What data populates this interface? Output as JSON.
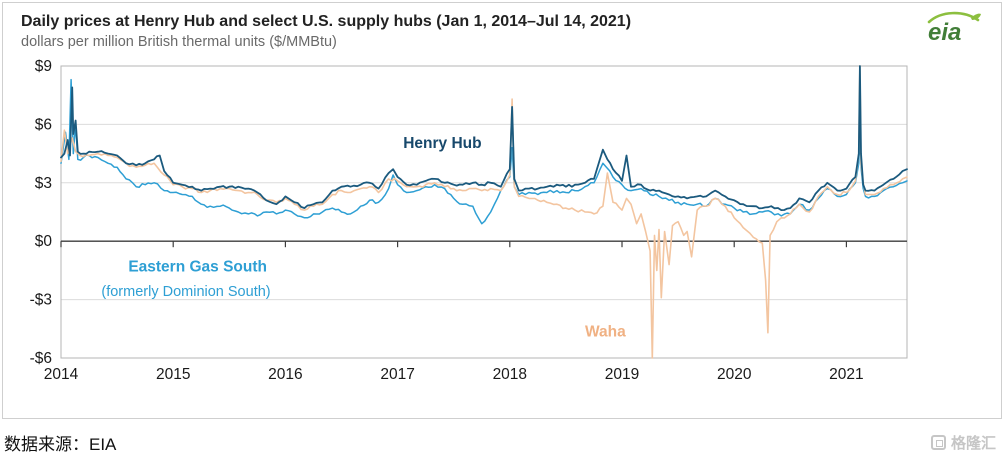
{
  "header": {
    "title": "Daily prices at Henry Hub and select U.S. supply hubs (Jan 1, 2014–Jul 14, 2021)",
    "subtitle": "dollars per million British thermal units ($/MMBtu)",
    "logo_text": "eia"
  },
  "source": {
    "label": "数据来源：EIA"
  },
  "watermark": {
    "text": "格隆汇"
  },
  "colors": {
    "henry_hub": "#1b5a7e",
    "eastern_gas_south": "#2e9fd4",
    "waha": "#f3c5a0",
    "eia_green": "#417e38",
    "eia_swoosh": "#8cbf3f"
  },
  "chart_data": {
    "type": "line",
    "title": "Daily prices at Henry Hub and select U.S. supply hubs (Jan 1, 2014–Jul 14, 2021)",
    "ylabel": "dollars per million British thermal units ($/MMBtu)",
    "grid": true,
    "legend_position": "in-plot-annotations",
    "x_range": [
      2014,
      2021.54
    ],
    "ylim": [
      -6,
      9
    ],
    "y_ticks": [
      9,
      6,
      3,
      0,
      -3,
      -6
    ],
    "y_tick_labels": [
      "$9",
      "$6",
      "$3",
      "$0",
      "-$3",
      "-$6"
    ],
    "x_ticks": [
      2014,
      2015,
      2016,
      2017,
      2018,
      2019,
      2020,
      2021
    ],
    "series": [
      {
        "name": "Eastern Gas South (formerly Dominion South)",
        "color": "#2e9fd4",
        "width": 1.5,
        "noise": 0.09,
        "x": [
          2014.0,
          2014.04,
          2014.07,
          2014.09,
          2014.11,
          2014.13,
          2014.15,
          2014.2,
          2014.25,
          2014.33,
          2014.42,
          2014.5,
          2014.58,
          2014.67,
          2014.75,
          2014.83,
          2014.92,
          2015.0,
          2015.08,
          2015.17,
          2015.25,
          2015.33,
          2015.42,
          2015.5,
          2015.58,
          2015.67,
          2015.75,
          2015.83,
          2015.92,
          2016.0,
          2016.08,
          2016.17,
          2016.25,
          2016.33,
          2016.42,
          2016.5,
          2016.58,
          2016.67,
          2016.75,
          2016.83,
          2016.92,
          2016.96,
          2017.0,
          2017.08,
          2017.17,
          2017.25,
          2017.33,
          2017.42,
          2017.5,
          2017.58,
          2017.67,
          2017.75,
          2017.83,
          2017.92,
          2018.0,
          2018.02,
          2018.04,
          2018.08,
          2018.17,
          2018.25,
          2018.33,
          2018.42,
          2018.5,
          2018.58,
          2018.67,
          2018.75,
          2018.83,
          2018.92,
          2019.0,
          2019.08,
          2019.17,
          2019.25,
          2019.33,
          2019.42,
          2019.5,
          2019.58,
          2019.67,
          2019.75,
          2019.83,
          2019.92,
          2020.0,
          2020.08,
          2020.17,
          2020.25,
          2020.33,
          2020.42,
          2020.5,
          2020.58,
          2020.67,
          2020.75,
          2020.83,
          2020.92,
          2021.0,
          2021.08,
          2021.11,
          2021.12,
          2021.13,
          2021.15,
          2021.17,
          2021.25,
          2021.33,
          2021.42,
          2021.5,
          2021.54
        ],
        "y": [
          4.0,
          5.6,
          4.2,
          8.3,
          4.5,
          6.0,
          4.2,
          4.3,
          4.4,
          4.3,
          4.0,
          3.8,
          3.2,
          2.8,
          2.9,
          3.0,
          2.6,
          2.5,
          2.4,
          2.3,
          1.9,
          1.8,
          1.8,
          1.7,
          1.5,
          1.4,
          1.3,
          1.5,
          1.4,
          1.6,
          1.4,
          1.2,
          1.4,
          1.5,
          1.7,
          1.5,
          1.4,
          1.8,
          2.1,
          2.0,
          2.7,
          3.4,
          2.9,
          2.5,
          2.6,
          2.8,
          2.9,
          2.7,
          2.2,
          1.9,
          1.8,
          0.9,
          1.5,
          2.6,
          3.3,
          4.8,
          2.8,
          2.4,
          2.5,
          2.4,
          2.5,
          2.6,
          2.5,
          2.6,
          2.8,
          3.0,
          4.0,
          3.3,
          2.9,
          2.6,
          2.7,
          2.4,
          2.3,
          2.1,
          2.0,
          1.9,
          1.9,
          1.8,
          2.2,
          1.9,
          1.7,
          1.5,
          1.4,
          1.5,
          1.5,
          1.3,
          1.4,
          1.9,
          1.6,
          2.2,
          2.7,
          2.3,
          2.4,
          3.0,
          4.0,
          5.8,
          3.8,
          2.7,
          2.3,
          2.3,
          2.6,
          2.8,
          3.0,
          3.1
        ]
      },
      {
        "name": "Waha",
        "color": "#f3c5a0",
        "width": 1.6,
        "noise": 0.09,
        "x": [
          2014.0,
          2014.03,
          2014.06,
          2014.1,
          2014.13,
          2014.17,
          2014.25,
          2014.33,
          2014.42,
          2014.5,
          2014.58,
          2014.67,
          2014.75,
          2014.83,
          2014.92,
          2015.0,
          2015.08,
          2015.17,
          2015.25,
          2015.33,
          2015.42,
          2015.5,
          2015.58,
          2015.67,
          2015.75,
          2015.83,
          2015.92,
          2016.0,
          2016.08,
          2016.17,
          2016.25,
          2016.33,
          2016.42,
          2016.5,
          2016.58,
          2016.67,
          2016.75,
          2016.83,
          2016.92,
          2017.0,
          2017.08,
          2017.17,
          2017.25,
          2017.33,
          2017.42,
          2017.5,
          2017.58,
          2017.67,
          2017.75,
          2017.83,
          2017.92,
          2018.0,
          2018.02,
          2018.04,
          2018.08,
          2018.17,
          2018.25,
          2018.33,
          2018.42,
          2018.5,
          2018.58,
          2018.67,
          2018.75,
          2018.83,
          2018.87,
          2018.92,
          2019.0,
          2019.04,
          2019.08,
          2019.13,
          2019.17,
          2019.21,
          2019.25,
          2019.27,
          2019.29,
          2019.31,
          2019.33,
          2019.35,
          2019.38,
          2019.42,
          2019.45,
          2019.5,
          2019.55,
          2019.58,
          2019.62,
          2019.67,
          2019.75,
          2019.83,
          2019.92,
          2020.0,
          2020.08,
          2020.17,
          2020.25,
          2020.28,
          2020.3,
          2020.32,
          2020.38,
          2020.42,
          2020.5,
          2020.58,
          2020.67,
          2020.75,
          2020.83,
          2020.92,
          2021.0,
          2021.08,
          2021.11,
          2021.12,
          2021.13,
          2021.15,
          2021.17,
          2021.25,
          2021.33,
          2021.42,
          2021.5,
          2021.54
        ],
        "y": [
          4.1,
          5.7,
          4.5,
          5.3,
          4.6,
          4.4,
          4.4,
          4.5,
          4.4,
          4.3,
          4.0,
          3.8,
          3.9,
          4.0,
          3.4,
          2.9,
          2.8,
          2.7,
          2.5,
          2.6,
          2.7,
          2.7,
          2.6,
          2.5,
          2.4,
          2.1,
          2.0,
          2.2,
          1.9,
          1.6,
          1.8,
          1.9,
          2.4,
          2.6,
          2.5,
          2.7,
          2.8,
          2.5,
          3.2,
          3.1,
          2.8,
          2.8,
          2.9,
          3.0,
          2.8,
          2.7,
          2.6,
          2.7,
          2.6,
          2.7,
          2.6,
          3.4,
          7.3,
          2.8,
          2.3,
          2.2,
          2.1,
          2.0,
          1.9,
          1.7,
          1.6,
          1.5,
          1.4,
          1.8,
          3.5,
          2.0,
          1.6,
          2.2,
          1.9,
          0.9,
          1.4,
          0.5,
          -0.5,
          -6.0,
          0.3,
          -1.5,
          0.6,
          -2.9,
          0.5,
          -1.2,
          0.8,
          1.0,
          0.3,
          0.5,
          -0.8,
          1.6,
          1.8,
          2.2,
          1.8,
          1.2,
          0.7,
          0.2,
          -0.1,
          -2.0,
          -4.7,
          0.3,
          1.0,
          1.2,
          1.4,
          1.9,
          1.5,
          2.3,
          2.8,
          2.4,
          2.5,
          3.1,
          4.5,
          9.0,
          4.0,
          3.0,
          2.4,
          2.4,
          2.7,
          2.9,
          3.2,
          3.3
        ]
      },
      {
        "name": "Henry Hub",
        "color": "#1b5a7e",
        "width": 1.8,
        "noise": 0.07,
        "x": [
          2014.0,
          2014.03,
          2014.06,
          2014.08,
          2014.1,
          2014.11,
          2014.13,
          2014.15,
          2014.2,
          2014.25,
          2014.33,
          2014.42,
          2014.5,
          2014.58,
          2014.67,
          2014.75,
          2014.83,
          2014.88,
          2014.92,
          2015.0,
          2015.08,
          2015.17,
          2015.25,
          2015.33,
          2015.42,
          2015.5,
          2015.58,
          2015.67,
          2015.75,
          2015.83,
          2015.92,
          2016.0,
          2016.08,
          2016.17,
          2016.25,
          2016.33,
          2016.42,
          2016.5,
          2016.58,
          2016.67,
          2016.75,
          2016.83,
          2016.92,
          2016.96,
          2017.0,
          2017.08,
          2017.17,
          2017.25,
          2017.33,
          2017.42,
          2017.5,
          2017.58,
          2017.67,
          2017.75,
          2017.83,
          2017.92,
          2018.0,
          2018.02,
          2018.04,
          2018.08,
          2018.17,
          2018.25,
          2018.33,
          2018.42,
          2018.5,
          2018.58,
          2018.67,
          2018.75,
          2018.83,
          2018.87,
          2018.92,
          2019.0,
          2019.04,
          2019.08,
          2019.17,
          2019.25,
          2019.33,
          2019.42,
          2019.5,
          2019.58,
          2019.67,
          2019.75,
          2019.83,
          2019.92,
          2020.0,
          2020.08,
          2020.17,
          2020.25,
          2020.33,
          2020.42,
          2020.5,
          2020.58,
          2020.67,
          2020.75,
          2020.83,
          2020.92,
          2021.0,
          2021.08,
          2021.11,
          2021.12,
          2021.13,
          2021.15,
          2021.17,
          2021.25,
          2021.33,
          2021.42,
          2021.5,
          2021.54
        ],
        "y": [
          4.3,
          4.5,
          5.2,
          4.4,
          7.9,
          5.5,
          6.2,
          4.6,
          4.5,
          4.6,
          4.6,
          4.5,
          4.4,
          4.0,
          3.9,
          4.0,
          4.2,
          4.4,
          3.6,
          3.0,
          2.9,
          2.8,
          2.6,
          2.7,
          2.8,
          2.8,
          2.8,
          2.7,
          2.5,
          2.1,
          1.9,
          2.3,
          2.0,
          1.7,
          1.9,
          2.0,
          2.6,
          2.8,
          2.8,
          2.9,
          3.0,
          2.7,
          3.5,
          3.7,
          3.3,
          2.9,
          2.9,
          3.1,
          3.2,
          3.0,
          2.9,
          2.9,
          3.0,
          2.9,
          3.0,
          2.8,
          3.7,
          6.9,
          3.2,
          2.6,
          2.7,
          2.7,
          2.8,
          2.9,
          2.8,
          2.9,
          3.0,
          3.2,
          4.7,
          4.2,
          3.7,
          3.1,
          4.4,
          2.8,
          2.9,
          2.6,
          2.6,
          2.4,
          2.3,
          2.2,
          2.3,
          2.3,
          2.6,
          2.3,
          2.1,
          1.9,
          1.8,
          1.7,
          1.8,
          1.6,
          1.7,
          2.2,
          2.0,
          2.6,
          3.0,
          2.6,
          2.7,
          3.3,
          4.5,
          9.0,
          4.5,
          2.9,
          2.6,
          2.6,
          2.9,
          3.2,
          3.6,
          3.7
        ]
      }
    ],
    "annotations": [
      {
        "text": "Henry Hub",
        "x": 2017.05,
        "y": 5.05,
        "color": "#17486b",
        "bold": true,
        "size": 15.5
      },
      {
        "text": "Eastern Gas South",
        "x": 2014.6,
        "y": -1.3,
        "color": "#2e9fd4",
        "bold": true,
        "size": 15.5
      },
      {
        "text": "(formerly Dominion South)",
        "x": 2014.36,
        "y": -2.55,
        "color": "#2e9fd4",
        "bold": false,
        "size": 14.5
      },
      {
        "text": "Waha",
        "x": 2018.67,
        "y": -4.65,
        "color": "#f0b183",
        "bold": true,
        "size": 15.5
      }
    ]
  }
}
